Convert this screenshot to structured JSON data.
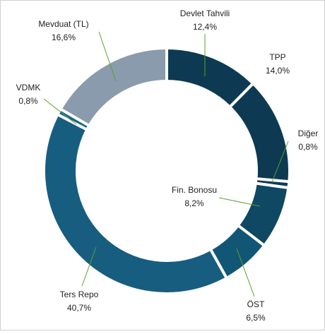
{
  "chart_data": {
    "type": "donut",
    "categories": [
      "Devlet Tahvili",
      "TPP",
      "Diğer",
      "Fin. Bonosu",
      "ÖST",
      "Ters Repo",
      "VDMK",
      "Mevduat (TL)"
    ],
    "values": [
      12.4,
      14.0,
      0.8,
      8.2,
      6.5,
      40.7,
      0.8,
      16.6
    ],
    "value_labels": [
      "12,4%",
      "14,0%",
      "0,8%",
      "8,2%",
      "6,5%",
      "40,7%",
      "0,8%",
      "16,6%"
    ],
    "colors": [
      "#0d3a52",
      "#0d3a52",
      "#0d3a52",
      "#0e4862",
      "#125675",
      "#175d80",
      "#1a6688",
      "#8a9bad"
    ]
  }
}
